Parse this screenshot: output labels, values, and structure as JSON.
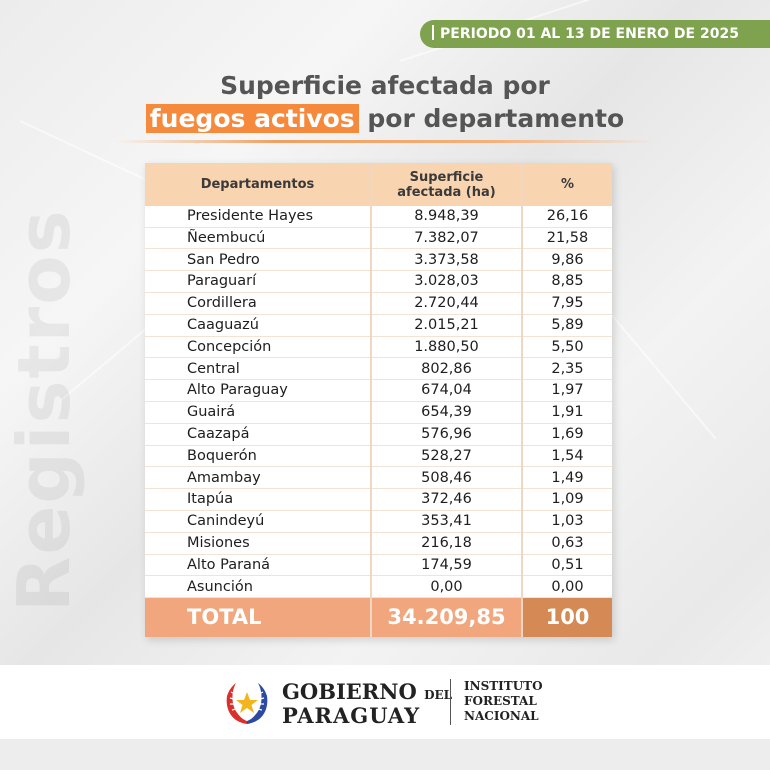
{
  "period": "PERIODO 01 AL 13 DE ENERO DE 2025",
  "watermark": "Registros",
  "title": {
    "line1": "Superficie afectada por",
    "highlight": "fuegos activos",
    "line2_rest": "por departamento"
  },
  "table": {
    "headers": {
      "departamentos": "Departamentos",
      "superficie_l1": "Superficie",
      "superficie_l2": "afectada (ha)",
      "pct": "%"
    },
    "rows": [
      {
        "departamento": "Presidente Hayes",
        "superficie": "8.948,39",
        "pct": "26,16"
      },
      {
        "departamento": "Ñeembucú",
        "superficie": "7.382,07",
        "pct": "21,58"
      },
      {
        "departamento": "San Pedro",
        "superficie": "3.373,58",
        "pct": "9,86"
      },
      {
        "departamento": "Paraguarí",
        "superficie": "3.028,03",
        "pct": "8,85"
      },
      {
        "departamento": "Cordillera",
        "superficie": "2.720,44",
        "pct": "7,95"
      },
      {
        "departamento": "Caaguazú",
        "superficie": "2.015,21",
        "pct": "5,89"
      },
      {
        "departamento": "Concepción",
        "superficie": "1.880,50",
        "pct": "5,50"
      },
      {
        "departamento": "Central",
        "superficie": "802,86",
        "pct": "2,35"
      },
      {
        "departamento": "Alto Paraguay",
        "superficie": "674,04",
        "pct": "1,97"
      },
      {
        "departamento": "Guairá",
        "superficie": "654,39",
        "pct": "1,91"
      },
      {
        "departamento": "Caazapá",
        "superficie": "576,96",
        "pct": "1,69"
      },
      {
        "departamento": "Boquerón",
        "superficie": "528,27",
        "pct": "1,54"
      },
      {
        "departamento": "Amambay",
        "superficie": "508,46",
        "pct": "1,49"
      },
      {
        "departamento": "Itapúa",
        "superficie": "372,46",
        "pct": "1,09"
      },
      {
        "departamento": "Canindeyú",
        "superficie": "353,41",
        "pct": "1,03"
      },
      {
        "departamento": "Misiones",
        "superficie": "216,18",
        "pct": "0,63"
      },
      {
        "departamento": "Alto Paraná",
        "superficie": "174,59",
        "pct": "0,51"
      },
      {
        "departamento": "Asunción",
        "superficie": "0,00",
        "pct": "0,00"
      }
    ],
    "total": {
      "label": "TOTAL",
      "superficie": "34.209,85",
      "pct": "100"
    }
  },
  "footer": {
    "gobierno": "GOBIERNO",
    "del": "DEL",
    "paraguay": "PARAGUAY",
    "institute": [
      "INSTITUTO",
      "FORESTAL",
      "NACIONAL"
    ]
  },
  "colors": {
    "accent_orange": "#f58a3d",
    "badge_green": "#7ea24d",
    "header_peach": "#f8d4b0",
    "total_orange": "#f1a67d",
    "total_pct_orange": "#d58a55"
  }
}
